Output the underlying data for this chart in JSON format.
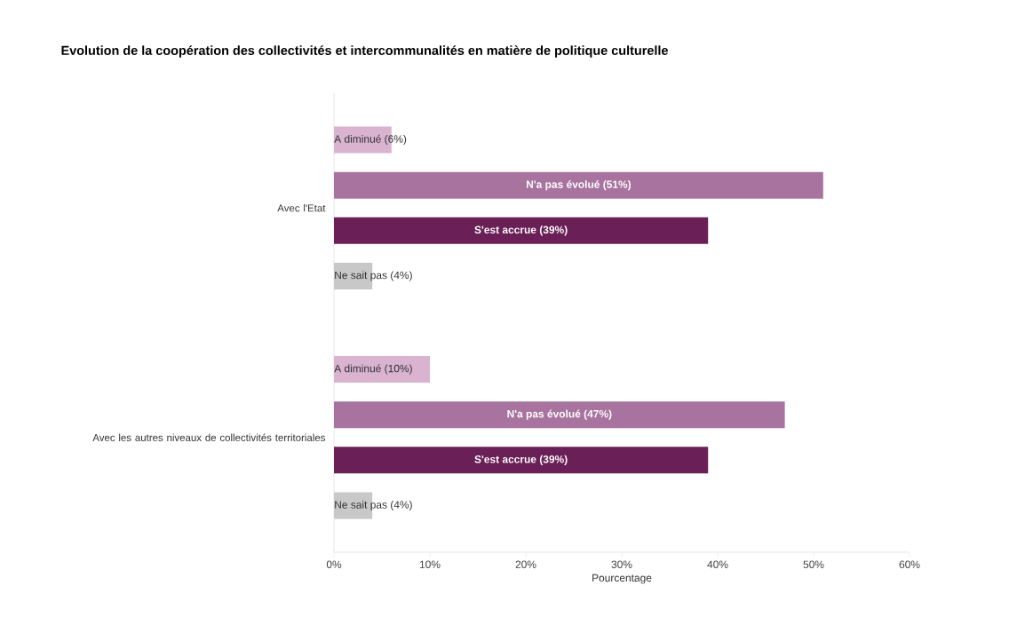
{
  "chart_data": {
    "type": "bar",
    "orientation": "horizontal",
    "title": "Evolution de la coopération des collectivités et intercommunalités en matière de politique culturelle",
    "xlabel": "Pourcentage",
    "categories": [
      "Avec l'Etat",
      "Avec les autres niveaux de collectivités territoriales"
    ],
    "series": [
      {
        "color": "#d9b3d0",
        "values": [
          6,
          10
        ],
        "value_labels": [
          "A diminué (6%)",
          "A diminué (10%)"
        ]
      },
      {
        "color": "#a8739f",
        "values": [
          51,
          47
        ],
        "value_labels": [
          "N'a pas évolué (51%)",
          "N'a pas évolué (47%)"
        ]
      },
      {
        "color": "#6b1f57",
        "values": [
          39,
          39
        ],
        "value_labels": [
          "S'est accrue (39%)",
          "S'est accrue (39%)"
        ]
      },
      {
        "color": "#c8c8c8",
        "values": [
          4,
          4
        ],
        "value_labels": [
          "Ne sait pas (4%)",
          "Ne sait pas (4%)"
        ]
      }
    ],
    "xlim": [
      0,
      60
    ],
    "xticks": [
      {
        "value": 0,
        "label": "0%"
      },
      {
        "value": 10,
        "label": "10%"
      },
      {
        "value": 20,
        "label": "20%"
      },
      {
        "value": 30,
        "label": "30%"
      },
      {
        "value": 40,
        "label": "40%"
      },
      {
        "value": 50,
        "label": "50%"
      },
      {
        "value": 60,
        "label": "60%"
      }
    ]
  }
}
